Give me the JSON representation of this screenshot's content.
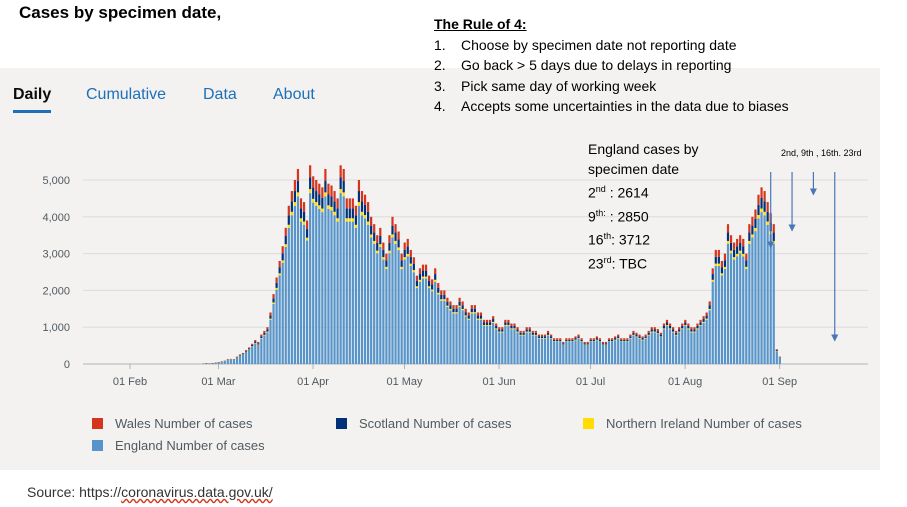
{
  "page_title": "Cases by specimen date,",
  "tabs": [
    {
      "label": "Daily",
      "active": true
    },
    {
      "label": "Cumulative",
      "active": false
    },
    {
      "label": "Data",
      "active": false
    },
    {
      "label": "About",
      "active": false
    }
  ],
  "rule": {
    "title": "The Rule of 4:",
    "items": [
      {
        "num": "1.",
        "text": "Choose by specimen date not reporting date"
      },
      {
        "num": "2.",
        "text": "Go back > 5 days due to delays in reporting"
      },
      {
        "num": "3.",
        "text": "Pick same day of working week"
      },
      {
        "num": "4.",
        "text": "Accepts some uncertainties in the data due to biases"
      }
    ]
  },
  "note": {
    "heading_line1": "England cases by",
    "heading_line2": "specimen date",
    "rows": [
      {
        "day": "2",
        "suffix": "nd",
        "value": " : 2614"
      },
      {
        "day": "9",
        "suffix": "th:",
        "value": " : 2850"
      },
      {
        "day": "16",
        "suffix": "th",
        "value": ": 3712"
      },
      {
        "day": "23",
        "suffix": "rd",
        "value": ": TBC"
      }
    ]
  },
  "dates_label": "2nd,  9th , 16th. 23rd",
  "colors": {
    "england": "#5694ca",
    "wales": "#d4351c",
    "scotland": "#003078",
    "northern_ireland": "#ffdd00",
    "arrow": "#4a76b8"
  },
  "legend": [
    {
      "label": "Wales Number of cases",
      "color": "#d4351c"
    },
    {
      "label": "Scotland Number of cases",
      "color": "#003078"
    },
    {
      "label": "Northern Ireland Number of cases",
      "color": "#ffdd00"
    },
    {
      "label": "England Number of cases",
      "color": "#5694ca"
    }
  ],
  "source": {
    "prefix": "Source: https://",
    "link": "coronavirus.data.gov.uk/"
  },
  "chart_data": {
    "type": "bar",
    "stacked": true,
    "title": "Cases by specimen date",
    "xlabel": "",
    "ylabel": "",
    "ylim": [
      0,
      5000
    ],
    "y_ticks": [
      0,
      1000,
      2000,
      3000,
      4000,
      5000
    ],
    "y_tick_labels": [
      "0",
      "1,000",
      "2,000",
      "3,000",
      "4,000",
      "5,000"
    ],
    "x_tick_labels": [
      "01 Feb",
      "01 Mar",
      "01 Apr",
      "01 May",
      "01 Jun",
      "01 Jul",
      "01 Aug",
      "01 Sep"
    ],
    "x_tick_day_index": [
      0,
      29,
      60,
      90,
      121,
      151,
      182,
      213
    ],
    "first_day_index": -11,
    "series_order": [
      "England",
      "Northern Ireland",
      "Scotland",
      "Wales"
    ],
    "approx_shares": {
      "England": 0.86,
      "Northern Ireland": 0.02,
      "Scotland": 0.06,
      "Wales": 0.06
    },
    "totals": [
      0,
      0,
      0,
      0,
      0,
      0,
      0,
      0,
      0,
      0,
      0,
      0,
      0,
      0,
      0,
      0,
      0,
      0,
      0,
      0,
      0,
      0,
      0,
      0,
      0,
      0,
      0,
      0,
      0,
      0,
      0,
      0,
      0,
      0,
      0,
      0,
      0,
      0,
      0,
      10,
      20,
      15,
      25,
      35,
      50,
      70,
      90,
      130,
      140,
      130,
      200,
      260,
      300,
      380,
      450,
      550,
      650,
      600,
      800,
      900,
      1000,
      1400,
      1900,
      2350,
      2800,
      3200,
      3700,
      4300,
      4700,
      5000,
      5300,
      4500,
      4400,
      3900,
      5400,
      5100,
      5000,
      4900,
      4800,
      5300,
      4900,
      4850,
      4700,
      4500,
      5400,
      5300,
      4500,
      4500,
      4500,
      4300,
      5000,
      4700,
      4600,
      4400,
      4000,
      3800,
      3500,
      3700,
      3300,
      3000,
      3500,
      4000,
      3800,
      3600,
      3000,
      3300,
      3400,
      3100,
      2900,
      2400,
      2600,
      2700,
      2700,
      2400,
      2300,
      2600,
      2200,
      2000,
      2000,
      1800,
      1700,
      1600,
      1600,
      1800,
      1700,
      1500,
      1400,
      1600,
      1600,
      1400,
      1400,
      1200,
      1200,
      1200,
      1300,
      1100,
      1000,
      1000,
      1200,
      1200,
      1100,
      1100,
      1000,
      900,
      900,
      1000,
      1000,
      900,
      900,
      800,
      800,
      800,
      900,
      800,
      700,
      700,
      700,
      600,
      700,
      700,
      700,
      750,
      800,
      700,
      600,
      600,
      700,
      700,
      750,
      700,
      600,
      600,
      700,
      700,
      750,
      800,
      700,
      700,
      700,
      800,
      900,
      850,
      800,
      750,
      800,
      900,
      1000,
      1000,
      950,
      850,
      1100,
      1200,
      1100,
      1000,
      900,
      1000,
      1100,
      1200,
      1100,
      1000,
      1000,
      1100,
      1200,
      1300,
      1400,
      1700,
      2600,
      3100,
      3100,
      2800,
      3000,
      3800,
      3500,
      3300,
      3400,
      3500,
      3400,
      3000,
      3800,
      4000,
      4200,
      4600,
      4800,
      4700,
      4400,
      4100,
      3800,
      400,
      200
    ]
  }
}
